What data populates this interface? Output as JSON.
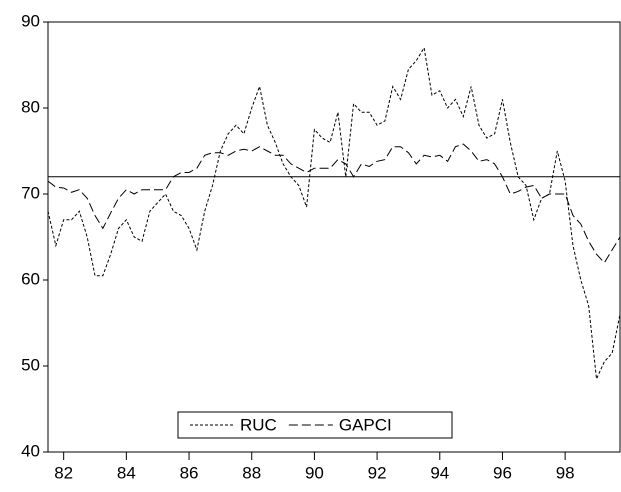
{
  "chart_data": {
    "type": "line",
    "x": [
      81.5,
      81.75,
      82,
      82.25,
      82.5,
      82.75,
      83,
      83.25,
      83.5,
      83.75,
      84,
      84.25,
      84.5,
      84.75,
      85,
      85.25,
      85.5,
      85.75,
      86,
      86.25,
      86.5,
      86.75,
      87,
      87.25,
      87.5,
      87.75,
      88,
      88.25,
      88.5,
      88.75,
      89,
      89.25,
      89.5,
      89.75,
      90,
      90.25,
      90.5,
      90.75,
      91,
      91.25,
      91.5,
      91.75,
      92,
      92.25,
      92.5,
      92.75,
      93,
      93.25,
      93.5,
      93.75,
      94,
      94.25,
      94.5,
      94.75,
      95,
      95.25,
      95.5,
      95.75,
      96,
      96.25,
      96.5,
      96.75,
      97,
      97.25,
      97.5,
      97.75,
      98,
      98.25,
      98.5,
      98.75,
      99,
      99.25,
      99.5,
      99.75
    ],
    "series": [
      {
        "name": "RUC",
        "color": "#000000",
        "dash": "3,2",
        "values": [
          68,
          64,
          67,
          67,
          68,
          65,
          60.5,
          60.5,
          63,
          66,
          67,
          65,
          64.5,
          68,
          69,
          70,
          68,
          67.5,
          66,
          63.5,
          68,
          71,
          75,
          77,
          78,
          77,
          80,
          82.5,
          78,
          76,
          73.5,
          72,
          71,
          68.5,
          77.5,
          76.5,
          76,
          79.5,
          72,
          80.5,
          79.5,
          79.5,
          78,
          78.5,
          82.5,
          81,
          84.5,
          85.5,
          87,
          81.5,
          82,
          80,
          81,
          79,
          82.5,
          78,
          76.5,
          77,
          81,
          76,
          72,
          71,
          67,
          69.5,
          70,
          75,
          71.5,
          64,
          60,
          57,
          48.5,
          50.5,
          51.5,
          56
        ]
      },
      {
        "name": "GAPCI",
        "color": "#000000",
        "dash": "9,4",
        "values": [
          71.5,
          70.8,
          70.7,
          70.2,
          70.5,
          69.5,
          67.5,
          66,
          67.8,
          69.5,
          70.5,
          70,
          70.5,
          70.5,
          70.5,
          70.5,
          72,
          72.5,
          72.5,
          73,
          74.5,
          74.8,
          74.8,
          74.5,
          75,
          75.2,
          75,
          75.5,
          75,
          74.5,
          74.5,
          73.5,
          73,
          72.5,
          73,
          73,
          73,
          74,
          73.5,
          72,
          73.5,
          73.2,
          73.8,
          74,
          75.5,
          75.5,
          74.8,
          73.5,
          74.5,
          74.3,
          74.5,
          73.8,
          75.5,
          75.8,
          75,
          73.8,
          74,
          73.5,
          72,
          70,
          70.3,
          70.8,
          71,
          69.5,
          70,
          70,
          70,
          67.5,
          66.5,
          64.5,
          63,
          62,
          63.5,
          65
        ]
      }
    ],
    "hline": 72,
    "xlim": [
      81.5,
      99.75
    ],
    "xticks": [
      82,
      84,
      86,
      88,
      90,
      92,
      94,
      96,
      98
    ],
    "ylim": [
      40,
      90
    ],
    "yticks": [
      40,
      50,
      60,
      70,
      80,
      90
    ],
    "legend": "bottom"
  }
}
